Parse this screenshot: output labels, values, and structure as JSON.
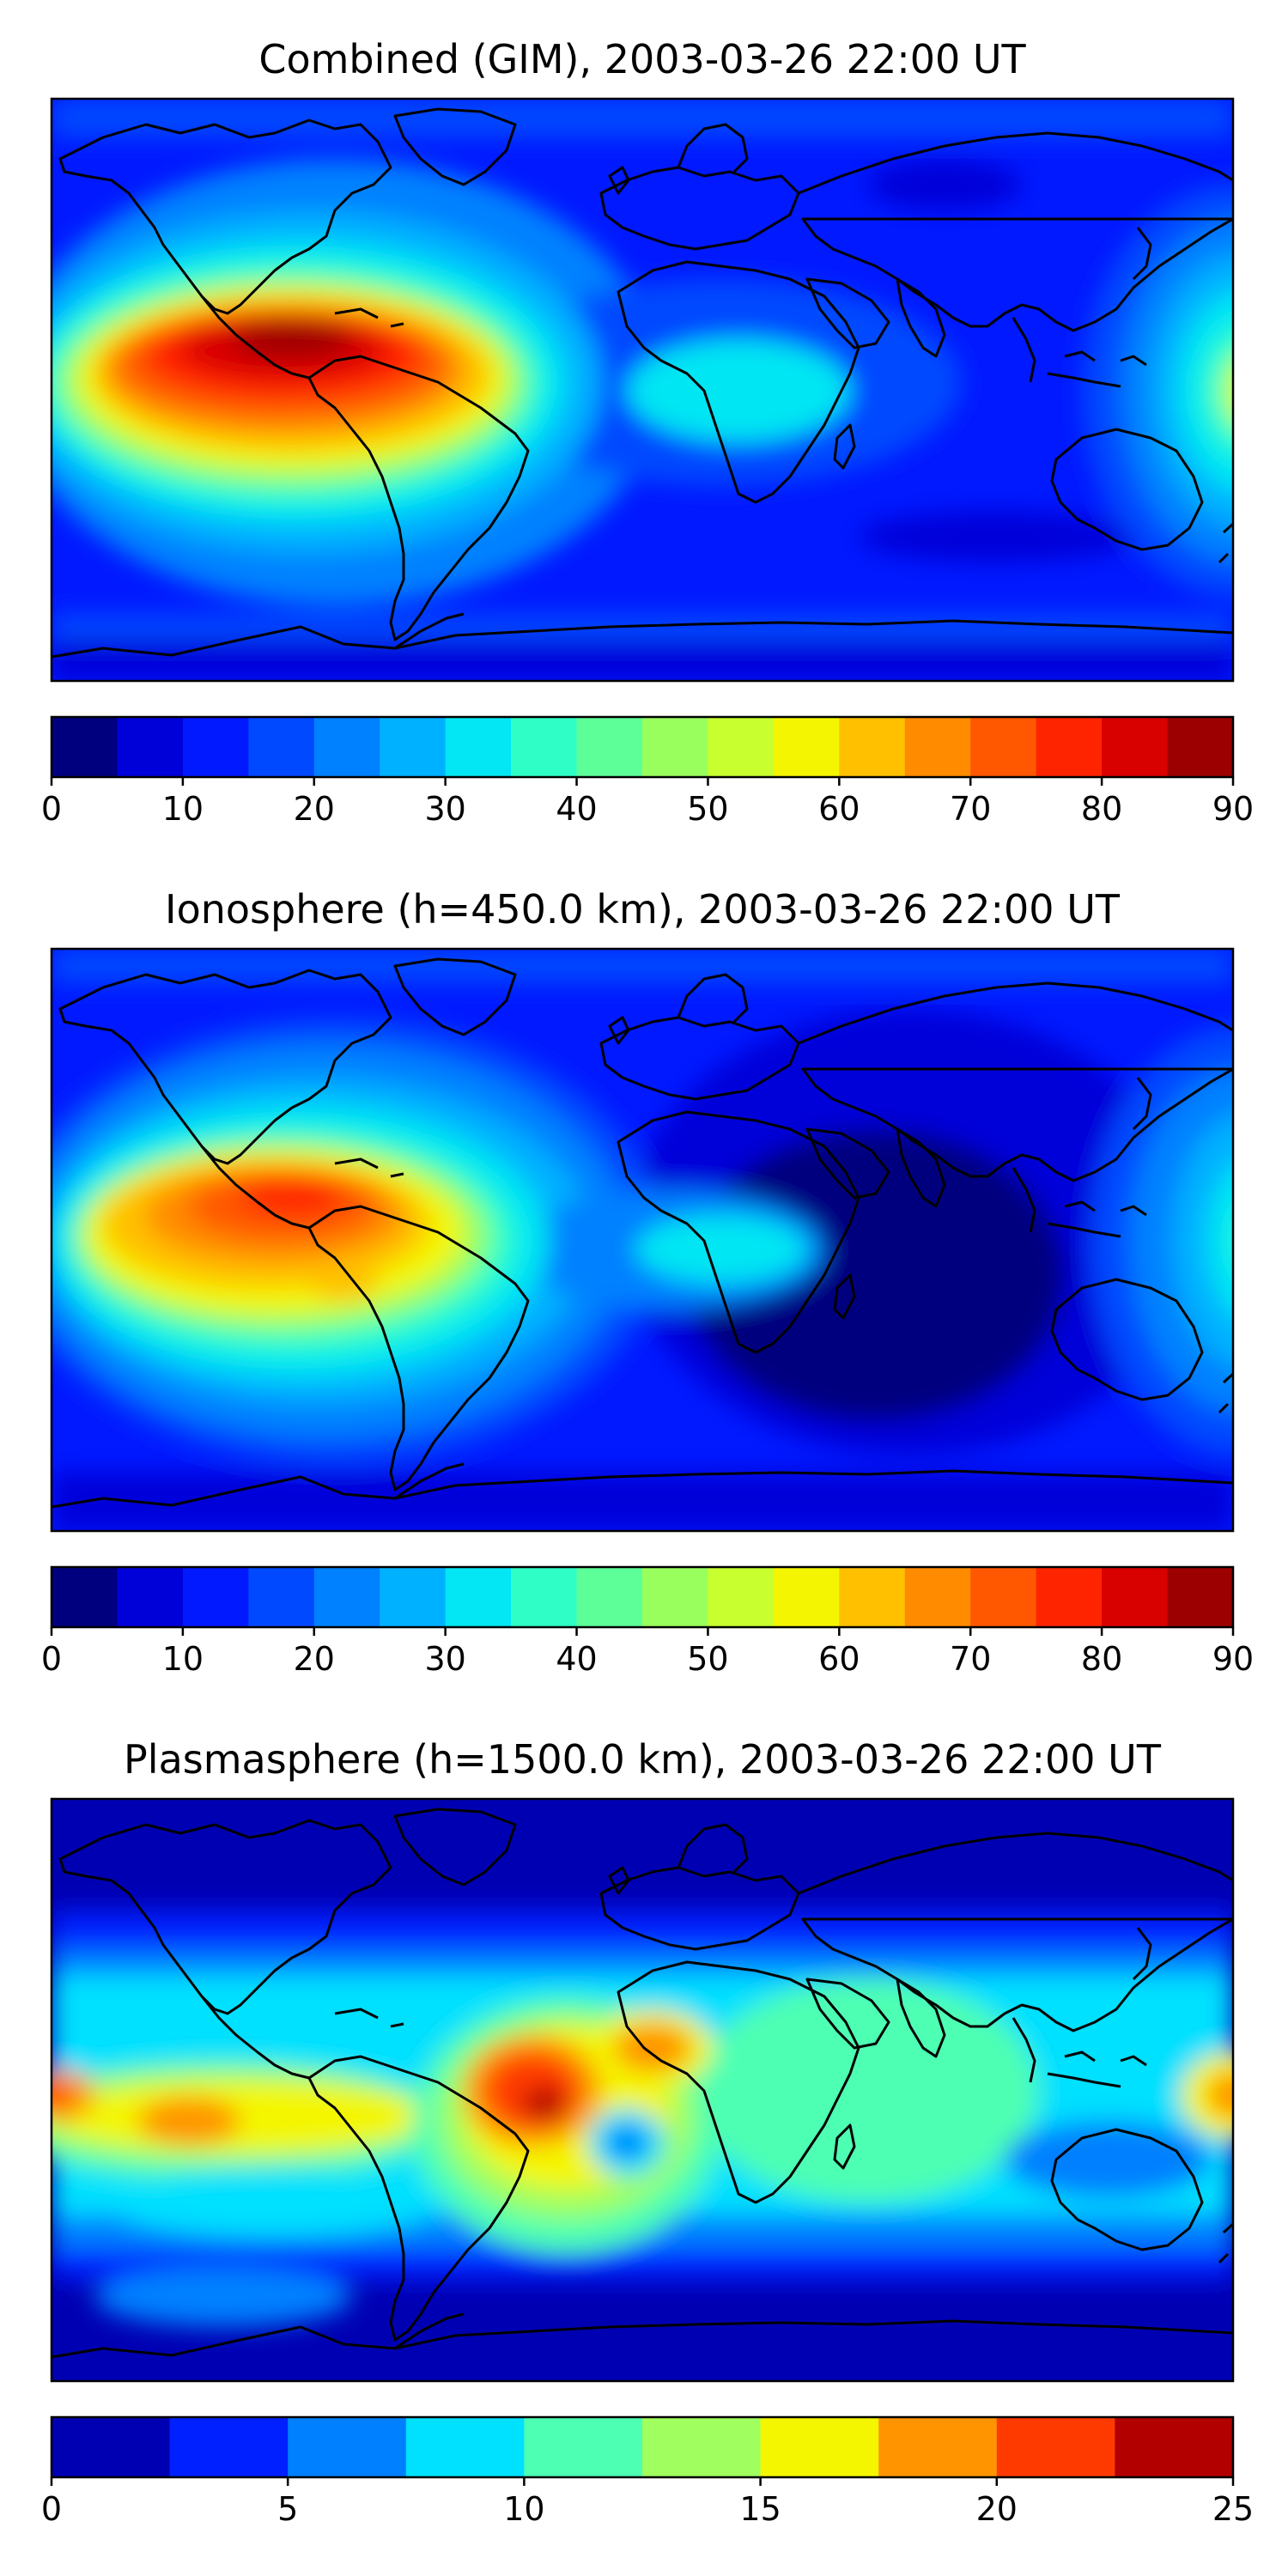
{
  "panels": [
    {
      "title": "Combined (GIM), 2003-03-26 22:00 UT",
      "colorbar": {
        "min": 0,
        "max": 90,
        "levels": 18,
        "ticks": [
          "0",
          "10",
          "20",
          "30",
          "40",
          "50",
          "60",
          "70",
          "80",
          "90"
        ],
        "colors": [
          "#00007f",
          "#0000d9",
          "#0019ff",
          "#0049ff",
          "#0081ff",
          "#00b1ff",
          "#03e6f3",
          "#2fffc7",
          "#5dff99",
          "#99ff5d",
          "#c7ff2f",
          "#f3f600",
          "#ffc000",
          "#ff8b00",
          "#ff5800",
          "#ff2400",
          "#d90000",
          "#9d0000"
        ]
      },
      "background_color": "#0019ff"
    },
    {
      "title": "Ionosphere  (h=450.0 km), 2003-03-26 22:00 UT",
      "colorbar": {
        "min": 0,
        "max": 90,
        "levels": 18,
        "ticks": [
          "0",
          "10",
          "20",
          "30",
          "40",
          "50",
          "60",
          "70",
          "80",
          "90"
        ],
        "colors": [
          "#00007f",
          "#0000d9",
          "#0019ff",
          "#0049ff",
          "#0081ff",
          "#00b1ff",
          "#03e6f3",
          "#2fffc7",
          "#5dff99",
          "#99ff5d",
          "#c7ff2f",
          "#f3f600",
          "#ffc000",
          "#ff8b00",
          "#ff5800",
          "#ff2400",
          "#d90000",
          "#9d0000"
        ]
      },
      "background_color": "#0019ff"
    },
    {
      "title": "Plasmasphere (h=1500.0 km), 2003-03-26 22:00 UT",
      "colorbar": {
        "min": 0,
        "max": 25,
        "levels": 10,
        "ticks": [
          "0",
          "5",
          "10",
          "15",
          "20",
          "25"
        ],
        "colors": [
          "#0000b3",
          "#0020ff",
          "#0080ff",
          "#00e0ff",
          "#4dffb2",
          "#a0ff5f",
          "#f4f600",
          "#ff9400",
          "#ff3a00",
          "#b20000"
        ]
      },
      "background_color": "#0000b3"
    }
  ]
}
